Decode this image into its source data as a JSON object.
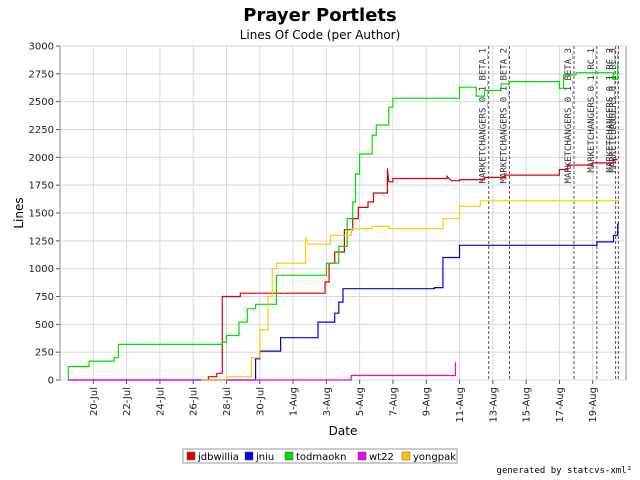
{
  "footer": "generated by statcvs-xml²",
  "chart_data": {
    "type": "line",
    "title": "Prayer Portlets",
    "subtitle": "Lines Of Code (per Author)",
    "xlabel": "Date",
    "ylabel": "Lines",
    "x_axis": "date",
    "xlim": [
      "2005-07-18",
      "2005-08-20"
    ],
    "ylim": [
      0,
      3000
    ],
    "x_ticks": [
      {
        "date": "2005-07-20",
        "label": "20-Jul"
      },
      {
        "date": "2005-07-22",
        "label": "22-Jul"
      },
      {
        "date": "2005-07-24",
        "label": "24-Jul"
      },
      {
        "date": "2005-07-26",
        "label": "26-Jul"
      },
      {
        "date": "2005-07-28",
        "label": "28-Jul"
      },
      {
        "date": "2005-07-30",
        "label": "30-Jul"
      },
      {
        "date": "2005-08-01",
        "label": "1-Aug"
      },
      {
        "date": "2005-08-03",
        "label": "3-Aug"
      },
      {
        "date": "2005-08-05",
        "label": "5-Aug"
      },
      {
        "date": "2005-08-07",
        "label": "7-Aug"
      },
      {
        "date": "2005-08-09",
        "label": "9-Aug"
      },
      {
        "date": "2005-08-11",
        "label": "11-Aug"
      },
      {
        "date": "2005-08-13",
        "label": "13-Aug"
      },
      {
        "date": "2005-08-15",
        "label": "15-Aug"
      },
      {
        "date": "2005-08-17",
        "label": "17-Aug"
      },
      {
        "date": "2005-08-19",
        "label": "19-Aug"
      }
    ],
    "y_ticks": [
      0,
      250,
      500,
      750,
      1000,
      1250,
      1500,
      1750,
      2000,
      2250,
      2500,
      2750,
      3000
    ],
    "y_tick_labels": [
      "0",
      "250",
      "500",
      "750",
      "1000",
      "1250",
      "1500",
      "1750",
      "2000",
      "2250",
      "2500",
      "2750",
      "3000"
    ],
    "grid": true,
    "legend_position": "bottom",
    "markers": [
      {
        "label": "MARKETCHANGERS_0_1_BETA_1",
        "date": "2005-08-12T18:00"
      },
      {
        "label": "MARKETCHANGERS_0_1_BETA_2",
        "date": "2005-08-14T00:00"
      },
      {
        "label": "MARKETCHANGERS_0_1_BETA_3",
        "date": "2005-08-17T21:00"
      },
      {
        "label": "MARKETCHANGERS_0_1_RC_1",
        "date": "2005-08-19T06:00"
      },
      {
        "label": "MARKETCHANGERS_0_1_RC_2",
        "date": "2005-08-20T09:00"
      },
      {
        "label": "MARKETCHANGERS_0_1_RC_3",
        "date": "2005-08-20T13:00"
      }
    ],
    "series": [
      {
        "name": "jdbwillia",
        "color": "#dd0000",
        "points": [
          [
            "2005-07-26T22:00",
            0
          ],
          [
            "2005-07-26T22:00",
            30
          ],
          [
            "2005-07-27T10:00",
            30
          ],
          [
            "2005-07-27T10:00",
            60
          ],
          [
            "2005-07-27T18:00",
            60
          ],
          [
            "2005-07-27T18:00",
            750
          ],
          [
            "2005-07-28T20:00",
            750
          ],
          [
            "2005-07-28T20:00",
            780
          ],
          [
            "2005-08-02T22:00",
            780
          ],
          [
            "2005-08-02T22:00",
            880
          ],
          [
            "2005-08-03T04:00",
            880
          ],
          [
            "2005-08-03T04:00",
            1050
          ],
          [
            "2005-08-03T12:00",
            1050
          ],
          [
            "2005-08-03T12:00",
            1150
          ],
          [
            "2005-08-04T02:00",
            1150
          ],
          [
            "2005-08-04T02:00",
            1350
          ],
          [
            "2005-08-04T14:00",
            1350
          ],
          [
            "2005-08-04T14:00",
            1450
          ],
          [
            "2005-08-04T22:00",
            1450
          ],
          [
            "2005-08-04T22:00",
            1550
          ],
          [
            "2005-08-05T12:00",
            1550
          ],
          [
            "2005-08-05T12:00",
            1600
          ],
          [
            "2005-08-05T20:00",
            1600
          ],
          [
            "2005-08-05T20:00",
            1680
          ],
          [
            "2005-08-06T16:00",
            1680
          ],
          [
            "2005-08-06T16:00",
            1900
          ],
          [
            "2005-08-06T18:00",
            1780
          ],
          [
            "2005-08-07T00:00",
            1780
          ],
          [
            "2005-08-07T00:00",
            1810
          ],
          [
            "2005-08-10T06:00",
            1810
          ],
          [
            "2005-08-10T06:00",
            1830
          ],
          [
            "2005-08-10T12:00",
            1790
          ],
          [
            "2005-08-11T00:00",
            1790
          ],
          [
            "2005-08-11T00:00",
            1800
          ],
          [
            "2005-08-12T12:00",
            1800
          ],
          [
            "2005-08-12T12:00",
            1820
          ],
          [
            "2005-08-13T18:00",
            1820
          ],
          [
            "2005-08-13T18:00",
            1840
          ],
          [
            "2005-08-17T00:00",
            1840
          ],
          [
            "2005-08-17T00:00",
            1890
          ],
          [
            "2005-08-17T12:00",
            1890
          ],
          [
            "2005-08-17T12:00",
            1930
          ],
          [
            "2005-08-19T00:00",
            1930
          ],
          [
            "2005-08-19T00:00",
            1950
          ],
          [
            "2005-08-20T06:00",
            1950
          ],
          [
            "2005-08-20T06:00",
            1980
          ],
          [
            "2005-08-20T12:00",
            1980
          ]
        ]
      },
      {
        "name": "jniu",
        "color": "#0000dd",
        "points": [
          [
            "2005-07-18T12:00",
            0
          ],
          [
            "2005-07-29T18:00",
            0
          ],
          [
            "2005-07-29T18:00",
            190
          ],
          [
            "2005-07-30T00:00",
            190
          ],
          [
            "2005-07-30T00:00",
            260
          ],
          [
            "2005-07-31T06:00",
            260
          ],
          [
            "2005-07-31T06:00",
            380
          ],
          [
            "2005-08-02T12:00",
            380
          ],
          [
            "2005-08-02T12:00",
            520
          ],
          [
            "2005-08-03T12:00",
            520
          ],
          [
            "2005-08-03T12:00",
            600
          ],
          [
            "2005-08-03T18:00",
            600
          ],
          [
            "2005-08-03T18:00",
            700
          ],
          [
            "2005-08-04T00:00",
            700
          ],
          [
            "2005-08-04T00:00",
            820
          ],
          [
            "2005-08-09T12:00",
            820
          ],
          [
            "2005-08-09T12:00",
            830
          ],
          [
            "2005-08-10T00:00",
            830
          ],
          [
            "2005-08-10T00:00",
            1100
          ],
          [
            "2005-08-11T00:00",
            1100
          ],
          [
            "2005-08-11T00:00",
            1210
          ],
          [
            "2005-08-19T06:00",
            1210
          ],
          [
            "2005-08-19T06:00",
            1240
          ],
          [
            "2005-08-20T06:00",
            1240
          ],
          [
            "2005-08-20T06:00",
            1300
          ],
          [
            "2005-08-20T12:00",
            1300
          ],
          [
            "2005-08-20T12:00",
            1400
          ],
          [
            "2005-08-20T14:00",
            1400
          ]
        ]
      },
      {
        "name": "todmaokn",
        "color": "#00dd00",
        "points": [
          [
            "2005-07-18T12:00",
            0
          ],
          [
            "2005-07-18T12:00",
            120
          ],
          [
            "2005-07-19T18:00",
            120
          ],
          [
            "2005-07-19T18:00",
            170
          ],
          [
            "2005-07-21T06:00",
            170
          ],
          [
            "2005-07-21T06:00",
            200
          ],
          [
            "2005-07-21T12:00",
            200
          ],
          [
            "2005-07-21T12:00",
            320
          ],
          [
            "2005-07-27T18:00",
            320
          ],
          [
            "2005-07-27T18:00",
            340
          ],
          [
            "2005-07-28T00:00",
            340
          ],
          [
            "2005-07-28T00:00",
            400
          ],
          [
            "2005-07-28T18:00",
            400
          ],
          [
            "2005-07-28T18:00",
            520
          ],
          [
            "2005-07-29T06:00",
            520
          ],
          [
            "2005-07-29T06:00",
            640
          ],
          [
            "2005-07-29T18:00",
            640
          ],
          [
            "2005-07-29T18:00",
            680
          ],
          [
            "2005-07-31T00:00",
            680
          ],
          [
            "2005-07-31T00:00",
            940
          ],
          [
            "2005-08-03T00:00",
            940
          ],
          [
            "2005-08-03T00:00",
            1050
          ],
          [
            "2005-08-03T18:00",
            1050
          ],
          [
            "2005-08-03T18:00",
            1200
          ],
          [
            "2005-08-04T06:00",
            1200
          ],
          [
            "2005-08-04T06:00",
            1450
          ],
          [
            "2005-08-04T14:00",
            1450
          ],
          [
            "2005-08-04T14:00",
            1600
          ],
          [
            "2005-08-04T18:00",
            1600
          ],
          [
            "2005-08-04T18:00",
            1850
          ],
          [
            "2005-08-05T00:00",
            1850
          ],
          [
            "2005-08-05T00:00",
            2030
          ],
          [
            "2005-08-05T18:00",
            2030
          ],
          [
            "2005-08-05T18:00",
            2200
          ],
          [
            "2005-08-06T00:00",
            2200
          ],
          [
            "2005-08-06T00:00",
            2290
          ],
          [
            "2005-08-06T18:00",
            2290
          ],
          [
            "2005-08-06T18:00",
            2450
          ],
          [
            "2005-08-07T00:00",
            2450
          ],
          [
            "2005-08-07T00:00",
            2530
          ],
          [
            "2005-08-11T00:00",
            2530
          ],
          [
            "2005-08-11T00:00",
            2630
          ],
          [
            "2005-08-12T00:00",
            2630
          ],
          [
            "2005-08-12T00:00",
            2550
          ],
          [
            "2005-08-12T12:00",
            2550
          ],
          [
            "2005-08-12T12:00",
            2600
          ],
          [
            "2005-08-13T12:00",
            2600
          ],
          [
            "2005-08-13T12:00",
            2660
          ],
          [
            "2005-08-14T00:00",
            2660
          ],
          [
            "2005-08-14T00:00",
            2680
          ],
          [
            "2005-08-17T00:00",
            2680
          ],
          [
            "2005-08-17T00:00",
            2620
          ],
          [
            "2005-08-17T06:00",
            2620
          ],
          [
            "2005-08-17T06:00",
            2740
          ],
          [
            "2005-08-18T00:00",
            2740
          ],
          [
            "2005-08-18T00:00",
            2760
          ],
          [
            "2005-08-20T06:00",
            2760
          ],
          [
            "2005-08-20T06:00",
            2700
          ],
          [
            "2005-08-20T12:00",
            2700
          ],
          [
            "2005-08-20T12:00",
            2850
          ],
          [
            "2005-08-20T14:00",
            2850
          ]
        ]
      },
      {
        "name": "wt22",
        "color": "#ee00ee",
        "points": [
          [
            "2005-07-18T12:00",
            0
          ],
          [
            "2005-08-04T12:00",
            0
          ],
          [
            "2005-08-04T12:00",
            40
          ],
          [
            "2005-08-10T18:00",
            40
          ],
          [
            "2005-08-10T18:00",
            160
          ]
        ]
      },
      {
        "name": "yongpak",
        "color": "#ffcc00",
        "points": [
          [
            "2005-07-26T12:00",
            0
          ],
          [
            "2005-07-28T00:00",
            0
          ],
          [
            "2005-07-28T00:00",
            30
          ],
          [
            "2005-07-29T12:00",
            30
          ],
          [
            "2005-07-29T12:00",
            200
          ],
          [
            "2005-07-30T00:00",
            200
          ],
          [
            "2005-07-30T00:00",
            450
          ],
          [
            "2005-07-30T12:00",
            450
          ],
          [
            "2005-07-30T12:00",
            750
          ],
          [
            "2005-07-30T18:00",
            750
          ],
          [
            "2005-07-30T18:00",
            1000
          ],
          [
            "2005-07-31T00:00",
            1000
          ],
          [
            "2005-07-31T00:00",
            1050
          ],
          [
            "2005-08-01T18:00",
            1050
          ],
          [
            "2005-08-01T18:00",
            1280
          ],
          [
            "2005-08-01T22:00",
            1220
          ],
          [
            "2005-08-03T06:00",
            1220
          ],
          [
            "2005-08-03T06:00",
            1300
          ],
          [
            "2005-08-04T12:00",
            1300
          ],
          [
            "2005-08-04T12:00",
            1360
          ],
          [
            "2005-08-05T18:00",
            1360
          ],
          [
            "2005-08-05T18:00",
            1380
          ],
          [
            "2005-08-06T18:00",
            1380
          ],
          [
            "2005-08-06T18:00",
            1360
          ],
          [
            "2005-08-10T00:00",
            1360
          ],
          [
            "2005-08-10T00:00",
            1450
          ],
          [
            "2005-08-11T00:00",
            1450
          ],
          [
            "2005-08-11T00:00",
            1560
          ],
          [
            "2005-08-12T06:00",
            1560
          ],
          [
            "2005-08-12T06:00",
            1610
          ],
          [
            "2005-08-20T14:00",
            1610
          ]
        ]
      }
    ]
  }
}
